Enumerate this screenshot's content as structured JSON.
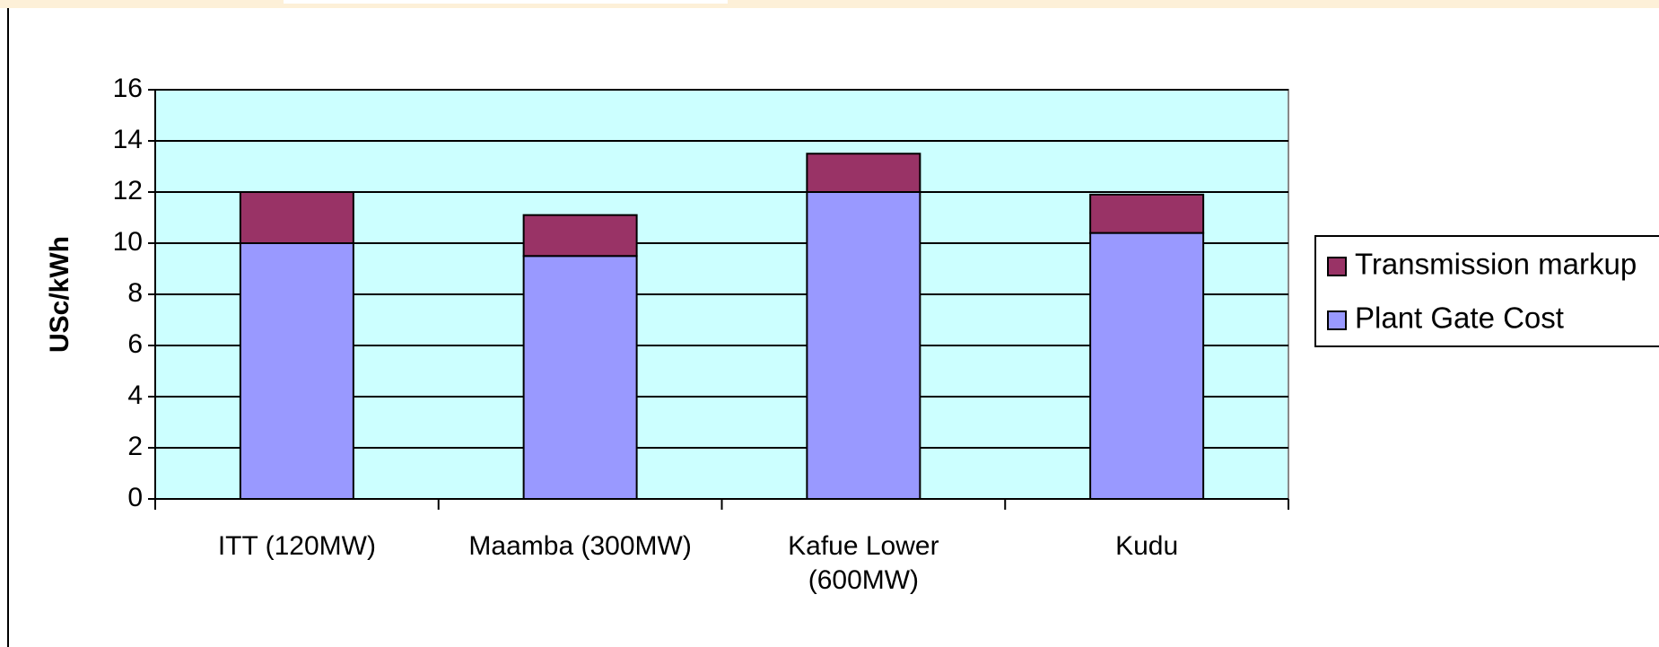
{
  "chart_data": {
    "type": "stacked_bar",
    "y_label": "USc/kWh",
    "categories": [
      "ITT (120MW)",
      "Maamba (300MW)",
      "Kafue Lower\n(600MW)",
      "Kudu"
    ],
    "series": [
      {
        "name": "Plant Gate Cost",
        "color": "#9999ff",
        "values": [
          10,
          9.5,
          12,
          10.4
        ]
      },
      {
        "name": "Transmission markup",
        "color": "#993366",
        "values": [
          2,
          1.6,
          1.5,
          1.5
        ]
      }
    ],
    "ylim": [
      0,
      16
    ],
    "yticks": [
      0,
      2,
      4,
      6,
      8,
      10,
      12,
      14,
      16
    ],
    "grid": true,
    "plot_background": "#ccffff",
    "legend": "right"
  }
}
